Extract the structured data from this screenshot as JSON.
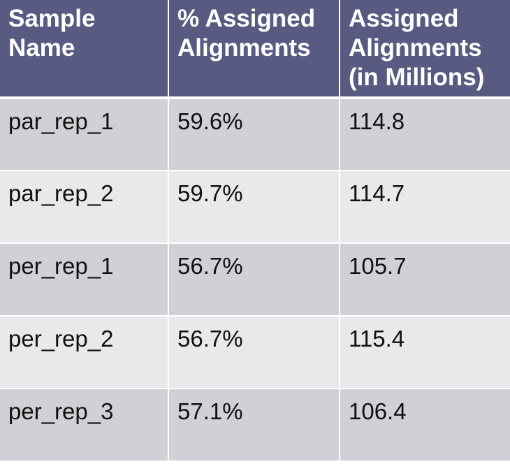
{
  "table": {
    "headers": [
      "Sample Name",
      "% Assigned Alignments",
      "Assigned Alignments (in Millions)"
    ],
    "rows": [
      [
        "par_rep_1",
        "59.6%",
        "114.8"
      ],
      [
        "par_rep_2",
        "59.7%",
        "114.7"
      ],
      [
        "per_rep_1",
        "56.7%",
        "105.7"
      ],
      [
        "per_rep_2",
        "56.7%",
        "115.4"
      ],
      [
        "per_rep_3",
        "57.1%",
        "106.4"
      ]
    ]
  },
  "colors": {
    "header_bg": "#585A81",
    "header_text": "#FFFFFF",
    "row_odd_bg": "#D0D1D6",
    "row_even_bg": "#E9E9EB",
    "cell_text": "#111111"
  }
}
